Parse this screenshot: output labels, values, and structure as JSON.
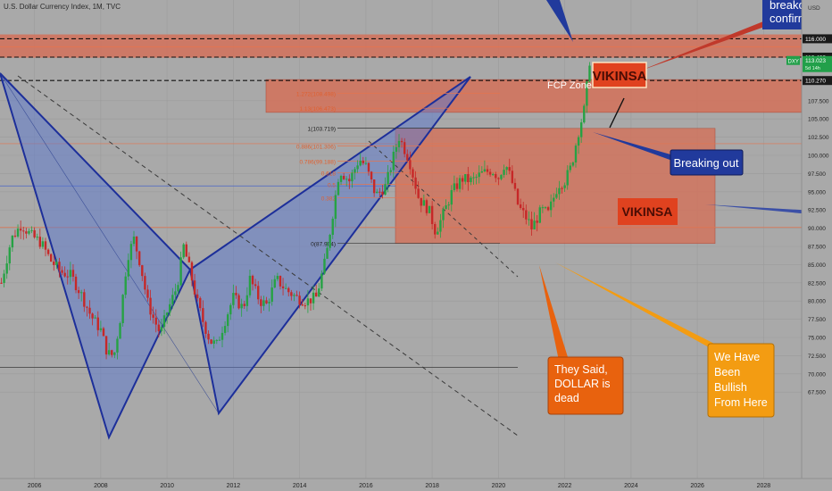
{
  "header": {
    "title": "U.S. Dollar Currency Index, 1M, TVC"
  },
  "colors": {
    "background": "#a9a9a9",
    "up_candle": "#26a244",
    "down_candle": "#c62828",
    "pattern_fill": "#5a78cf",
    "pattern_stroke": "#1d2f9a",
    "zone_fill": "#d4715a",
    "note_orange": "#e8620e",
    "note_blue": "#213a9c",
    "price_green": "#22a04a"
  },
  "chart_data": {
    "type": "candlestick",
    "symbol": "DXY",
    "x_ticks": [
      "2006",
      "2008",
      "2010",
      "2012",
      "2014",
      "2016",
      "2018",
      "2020",
      "2022",
      "2024",
      "2026",
      "2028"
    ],
    "y_ticks": [
      "67.500",
      "70.000",
      "72.500",
      "75.000",
      "77.500",
      "80.000",
      "82.500",
      "85.000",
      "87.500",
      "90.000",
      "92.500",
      "95.000",
      "97.500",
      "100.000",
      "102.500",
      "105.000",
      "107.500"
    ],
    "ylim": [
      66.5,
      117.5
    ],
    "xlim": [
      2005,
      2029
    ],
    "axis_unit": "USD",
    "price_labels": [
      {
        "id": "p116",
        "text": "116.000",
        "value": 116.0,
        "style": "dark"
      },
      {
        "id": "p113",
        "text": "113.482",
        "value": 113.482,
        "style": "dark"
      },
      {
        "id": "pdxy",
        "text": "113.023",
        "value": 113.023,
        "style": "green",
        "ticker": "DXY",
        "sub": "5d 14h"
      },
      {
        "id": "p110",
        "text": "110.270",
        "value": 110.27,
        "style": "dark"
      }
    ],
    "price_path": [
      [
        2005.0,
        82.5
      ],
      [
        2005.3,
        88.5
      ],
      [
        2005.6,
        90.5
      ],
      [
        2005.9,
        89.0
      ],
      [
        2006.2,
        88.0
      ],
      [
        2006.5,
        85.5
      ],
      [
        2006.8,
        84.0
      ],
      [
        2007.1,
        83.5
      ],
      [
        2007.4,
        81.0
      ],
      [
        2007.7,
        78.0
      ],
      [
        2008.0,
        76.0
      ],
      [
        2008.2,
        72.8
      ],
      [
        2008.4,
        72.5
      ],
      [
        2008.6,
        78.0
      ],
      [
        2008.8,
        86.0
      ],
      [
        2009.0,
        88.5
      ],
      [
        2009.2,
        85.0
      ],
      [
        2009.4,
        80.0
      ],
      [
        2009.6,
        77.5
      ],
      [
        2009.8,
        75.5
      ],
      [
        2010.0,
        78.5
      ],
      [
        2010.3,
        82.0
      ],
      [
        2010.5,
        87.5
      ],
      [
        2010.7,
        84.0
      ],
      [
        2010.9,
        80.0
      ],
      [
        2011.1,
        77.0
      ],
      [
        2011.3,
        74.5
      ],
      [
        2011.5,
        74.0
      ],
      [
        2011.8,
        78.0
      ],
      [
        2012.0,
        80.5
      ],
      [
        2012.3,
        79.0
      ],
      [
        2012.5,
        83.0
      ],
      [
        2012.8,
        80.0
      ],
      [
        2013.0,
        79.5
      ],
      [
        2013.3,
        83.0
      ],
      [
        2013.6,
        81.5
      ],
      [
        2013.9,
        80.5
      ],
      [
        2014.2,
        80.0
      ],
      [
        2014.5,
        80.5
      ],
      [
        2014.8,
        86.0
      ],
      [
        2015.0,
        92.0
      ],
      [
        2015.2,
        98.0
      ],
      [
        2015.5,
        96.5
      ],
      [
        2015.8,
        99.5
      ],
      [
        2016.0,
        98.5
      ],
      [
        2016.3,
        94.5
      ],
      [
        2016.6,
        95.8
      ],
      [
        2016.9,
        101.0
      ],
      [
        2017.0,
        102.5
      ],
      [
        2017.3,
        99.5
      ],
      [
        2017.6,
        94.0
      ],
      [
        2017.9,
        92.5
      ],
      [
        2018.1,
        89.5
      ],
      [
        2018.3,
        91.5
      ],
      [
        2018.6,
        95.0
      ],
      [
        2018.9,
        96.8
      ],
      [
        2019.2,
        96.5
      ],
      [
        2019.5,
        97.5
      ],
      [
        2019.8,
        98.0
      ],
      [
        2020.0,
        97.0
      ],
      [
        2020.2,
        99.0
      ],
      [
        2020.4,
        96.5
      ],
      [
        2020.6,
        93.0
      ],
      [
        2020.9,
        91.0
      ],
      [
        2021.0,
        90.0
      ],
      [
        2021.3,
        92.5
      ],
      [
        2021.5,
        92.0
      ],
      [
        2021.8,
        96.0
      ],
      [
        2022.0,
        96.5
      ],
      [
        2022.2,
        98.5
      ],
      [
        2022.4,
        103.0
      ],
      [
        2022.6,
        106.5
      ],
      [
        2022.75,
        113.0
      ]
    ]
  },
  "fib": {
    "levels": [
      {
        "label": "1.272(108.498)",
        "value": 108.498
      },
      {
        "label": "1.13(106.473)",
        "value": 106.473
      },
      {
        "label": "1(103.719)",
        "value": 103.719
      },
      {
        "label": "0.886(101.306)",
        "value": 101.306
      },
      {
        "label": "0.786(99.188)",
        "value": 99.188
      },
      {
        "label": "0.618",
        "value": 97.6
      },
      {
        "label": "0.5",
        "value": 96.0
      },
      {
        "label": "0.382",
        "value": 94.2
      },
      {
        "label": "0(87.904)",
        "value": 87.904
      }
    ]
  },
  "annotations": {
    "fcp_zone": "FCP Zone",
    "vikinsa_top": "VIKINSA",
    "vikinsa_mid": "VIKINSA",
    "breaking_out": "Breaking out",
    "breakout_confirm_1": "breakout",
    "breakout_confirm_2": "confirm",
    "they_said": [
      "They Said,",
      "DOLLAR is",
      "dead"
    ],
    "bullish": [
      "We Have",
      "Been",
      "Bullish",
      "From Here"
    ]
  }
}
